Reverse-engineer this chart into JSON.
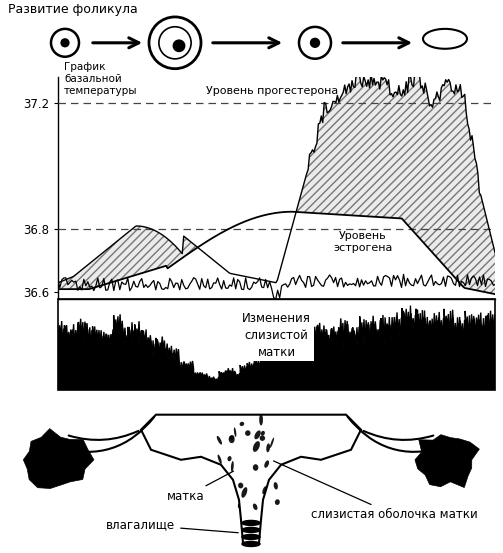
{
  "title_follicle": "Развитие фоликула",
  "label_progesterone": "Уровень прогестерона",
  "label_basal": "График\nбазальной\nтемпературы",
  "label_estrogen": "Уровень\nэстрогена",
  "label_mucosa": "Изменения\nслизистой\nматки",
  "label_uterus": "матка",
  "label_vagina": "влагалище",
  "label_mucosa_layer": "слизистая оболочка матки",
  "y_ticks": [
    36.6,
    36.8,
    37.2
  ],
  "bg_color": "#ffffff"
}
